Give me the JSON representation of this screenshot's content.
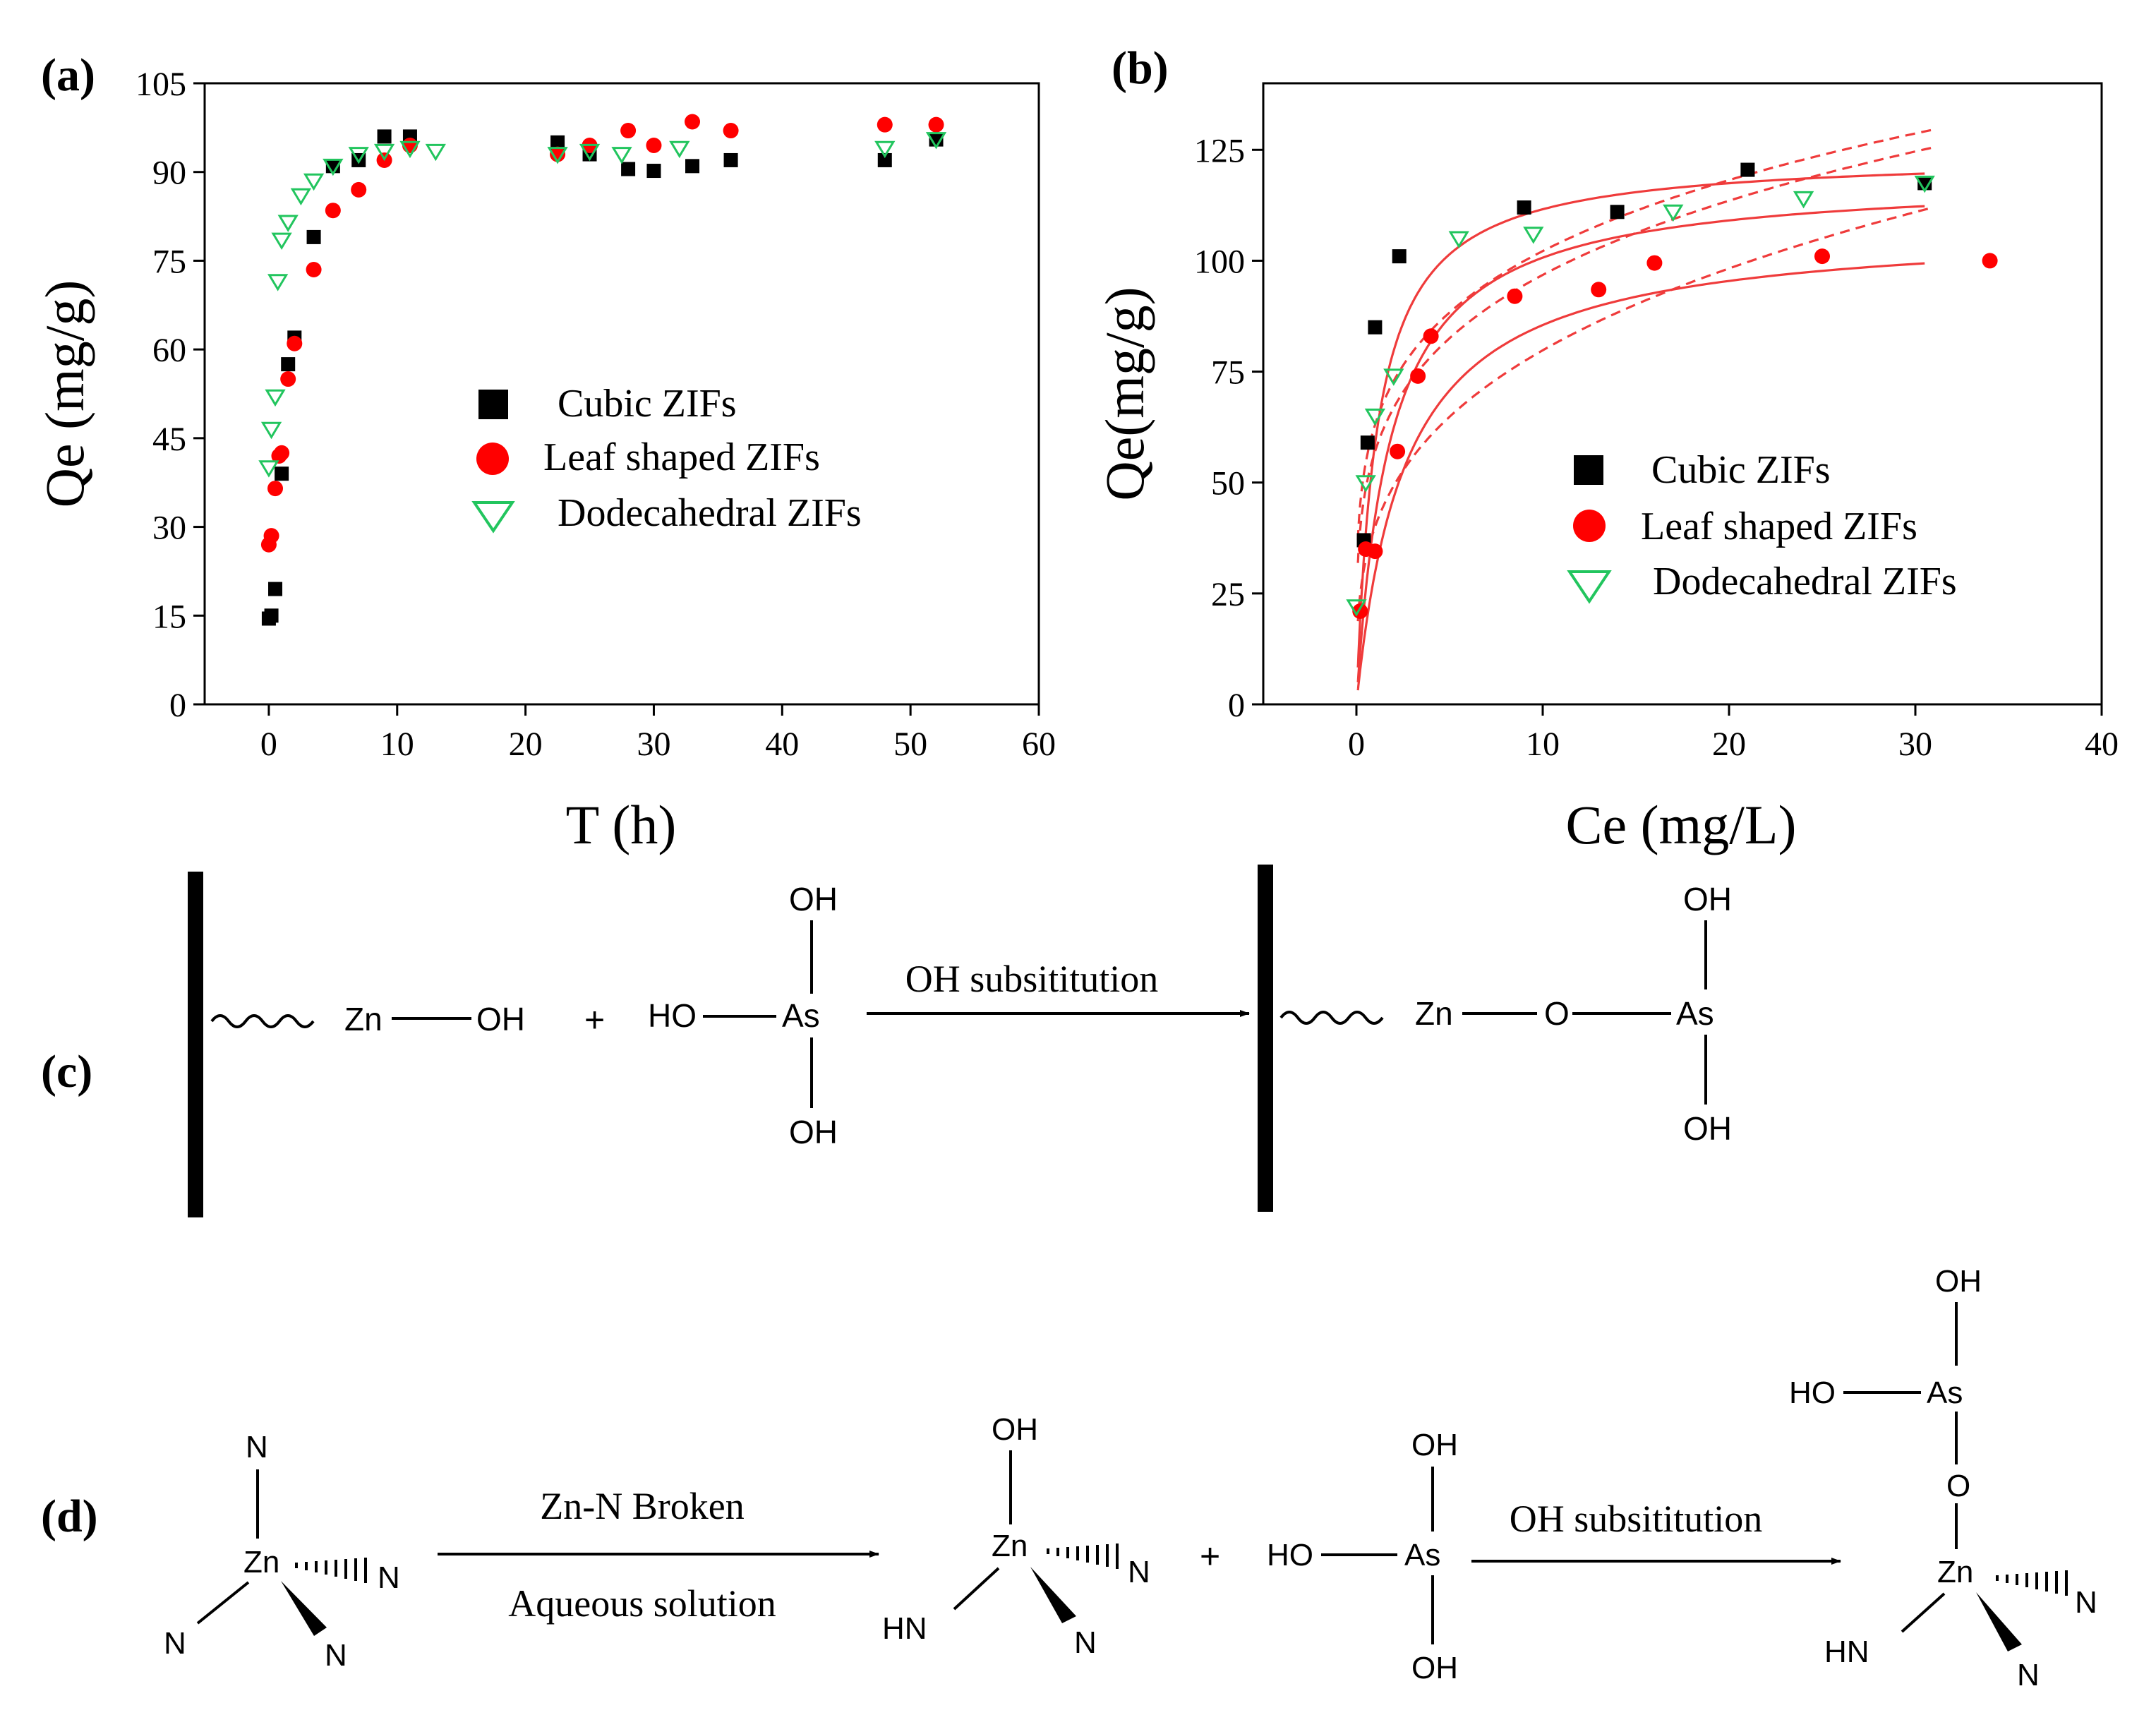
{
  "colors": {
    "cubic": "#000000",
    "leaf": "#ff0000",
    "dodeca": "#22c55e",
    "fit": "#ef3b3b",
    "axis": "#000000"
  },
  "chart_data": [
    {
      "panel_label": "(a)",
      "type": "scatter",
      "xlabel": "T (h)",
      "ylabel": "Qe (mg/g)",
      "xlim": [
        -5,
        60
      ],
      "ylim": [
        0,
        105
      ],
      "xticks": [
        0,
        10,
        20,
        30,
        40,
        50,
        60
      ],
      "yticks": [
        0,
        15,
        30,
        45,
        60,
        75,
        90,
        105
      ],
      "legend_position": "center-right",
      "series": [
        {
          "name": "Cubic ZIFs",
          "marker": "square",
          "points": [
            [
              0,
              14.5
            ],
            [
              0.2,
              15
            ],
            [
              0.5,
              19.5
            ],
            [
              1,
              39
            ],
            [
              1.5,
              57.5
            ],
            [
              2,
              62
            ],
            [
              3.5,
              79
            ],
            [
              5,
              91
            ],
            [
              7,
              92
            ],
            [
              9,
              96
            ],
            [
              11,
              96
            ],
            [
              22.5,
              95
            ],
            [
              25,
              93
            ],
            [
              28,
              90.5
            ],
            [
              30,
              90.2
            ],
            [
              33,
              91
            ],
            [
              36,
              92
            ],
            [
              48,
              92
            ],
            [
              52,
              95.5
            ]
          ]
        },
        {
          "name": "Leaf shaped ZIFs",
          "marker": "circle",
          "points": [
            [
              0,
              27
            ],
            [
              0.2,
              28.5
            ],
            [
              0.5,
              36.5
            ],
            [
              0.8,
              42
            ],
            [
              1,
              42.5
            ],
            [
              1.5,
              55
            ],
            [
              2,
              61
            ],
            [
              3.5,
              73.5
            ],
            [
              5,
              83.5
            ],
            [
              7,
              87
            ],
            [
              9,
              92
            ],
            [
              11,
              94.5
            ],
            [
              22.5,
              93
            ],
            [
              25,
              94.5
            ],
            [
              28,
              97
            ],
            [
              30,
              94.5
            ],
            [
              33,
              98.5
            ],
            [
              36,
              97
            ],
            [
              48,
              98
            ],
            [
              52,
              98
            ]
          ]
        },
        {
          "name": "Dodecahedral ZIFs",
          "marker": "triangle-down",
          "points": [
            [
              0,
              40
            ],
            [
              0.2,
              46.5
            ],
            [
              0.5,
              52
            ],
            [
              0.7,
              71.5
            ],
            [
              1,
              78.5
            ],
            [
              1.5,
              81.5
            ],
            [
              2.5,
              86
            ],
            [
              3.5,
              88.5
            ],
            [
              5,
              91
            ],
            [
              7,
              93
            ],
            [
              9,
              93.5
            ],
            [
              11,
              94
            ],
            [
              13,
              93.5
            ],
            [
              22.5,
              93
            ],
            [
              25,
              93.5
            ],
            [
              27.5,
              93
            ],
            [
              32,
              94
            ],
            [
              48,
              94
            ],
            [
              52,
              95.5
            ]
          ]
        }
      ]
    },
    {
      "panel_label": "(b)",
      "type": "scatter",
      "xlabel": "Ce (mg/L)",
      "ylabel": "Qe(mg/g)",
      "xlim": [
        -5,
        40
      ],
      "ylim": [
        0,
        140
      ],
      "xticks": [
        0,
        10,
        20,
        30,
        40
      ],
      "yticks": [
        0,
        25,
        50,
        75,
        100,
        125
      ],
      "legend_position": "center-right",
      "series": [
        {
          "name": "Cubic ZIFs",
          "marker": "square",
          "points": [
            [
              0.4,
              37
            ],
            [
              0.6,
              59
            ],
            [
              1,
              85
            ],
            [
              2.3,
              101
            ],
            [
              9,
              112
            ],
            [
              14,
              111
            ],
            [
              21,
              120.5
            ],
            [
              30.5,
              117.5
            ]
          ]
        },
        {
          "name": "Leaf shaped ZIFs",
          "marker": "circle",
          "points": [
            [
              0.2,
              21
            ],
            [
              0.5,
              35
            ],
            [
              1,
              34.5
            ],
            [
              2.2,
              57
            ],
            [
              3.3,
              74
            ],
            [
              4,
              83
            ],
            [
              8.5,
              92
            ],
            [
              13,
              93.5
            ],
            [
              16,
              99.5
            ],
            [
              25,
              101
            ],
            [
              34,
              100
            ]
          ]
        },
        {
          "name": "Dodecahedral ZIFs",
          "marker": "triangle-down",
          "points": [
            [
              0,
              22
            ],
            [
              0.5,
              50
            ],
            [
              1,
              65
            ],
            [
              2,
              74
            ],
            [
              5.5,
              105
            ],
            [
              9.5,
              106
            ],
            [
              17,
              111
            ],
            [
              24,
              114
            ],
            [
              30.5,
              117.5
            ]
          ]
        }
      ],
      "fits": [
        {
          "style": "solid",
          "qm": 124,
          "k": 0.9
        },
        {
          "style": "solid",
          "qm": 119,
          "k": 0.55
        },
        {
          "style": "solid",
          "qm": 108,
          "k": 0.38
        },
        {
          "style": "dashed",
          "kf": 63,
          "n": 0.21
        },
        {
          "style": "dashed",
          "kf": 57,
          "n": 0.23
        },
        {
          "style": "dashed",
          "kf": 40,
          "n": 0.3
        }
      ]
    }
  ],
  "panel_c": {
    "label": "(c)",
    "reactant_zn": "Zn",
    "reactant_oh": "OH",
    "plus": "+",
    "as_top_oh": "OH",
    "as_left_ho": "HO",
    "as_center": "As",
    "as_bottom_oh": "OH",
    "arrow_label": "OH subsititution",
    "product_zn": "Zn",
    "product_o": "O",
    "product_as": "As",
    "product_top_oh": "OH",
    "product_bottom_oh": "OH"
  },
  "panel_d": {
    "label": "(d)",
    "zn1": "Zn",
    "zn1_n_top": "N",
    "zn1_n_left": "N",
    "zn1_n_bottom": "N",
    "zn1_n_right": "N",
    "arrow1_top": "Zn-N Broken",
    "arrow1_bottom": "Aqueous solution",
    "zn2": "Zn",
    "zn2_oh": "OH",
    "zn2_hn": "HN",
    "zn2_n_bottom": "N",
    "zn2_n_right": "N",
    "plus": "+",
    "as_top_oh": "OH",
    "as_left_ho": "HO",
    "as_center": "As",
    "as_bottom_oh": "OH",
    "arrow2_label": "OH subsititution",
    "p_oh": "OH",
    "p_ho": "HO",
    "p_as": "As",
    "p_o": "O",
    "p_zn": "Zn",
    "p_hn": "HN",
    "p_n_bottom": "N",
    "p_n_right": "N"
  }
}
